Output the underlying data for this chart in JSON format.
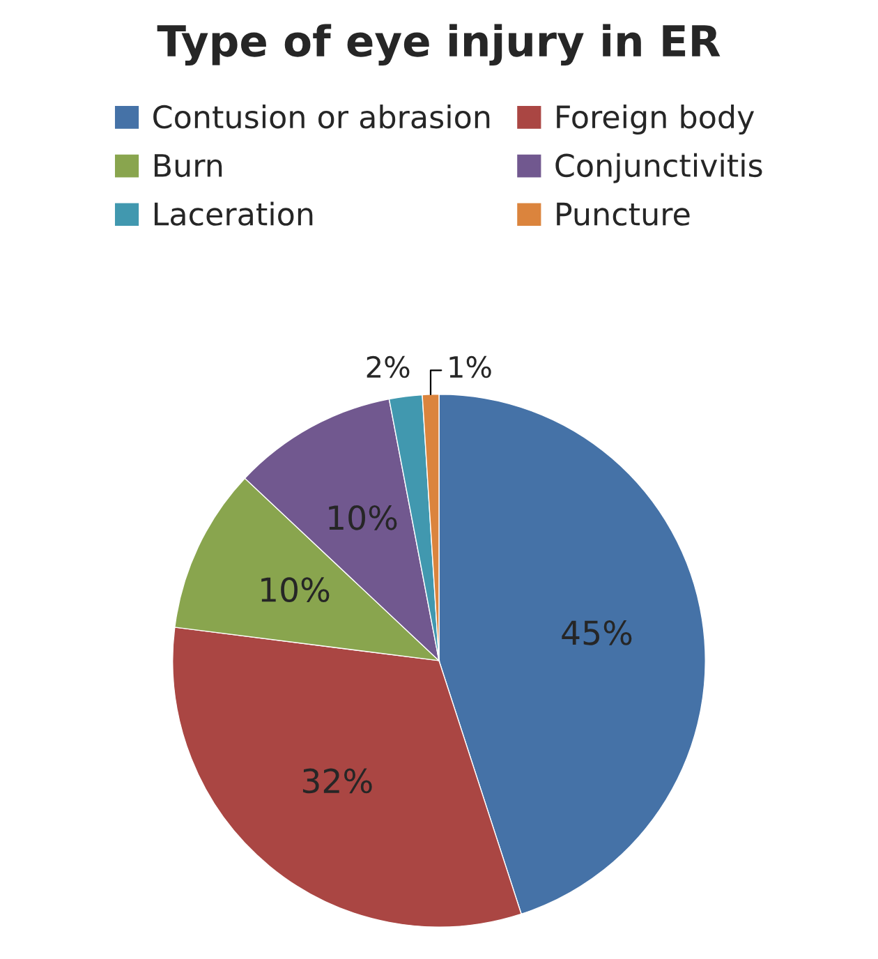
{
  "chart_data": {
    "type": "pie",
    "title": "Type of eye injury in ER",
    "categories": [
      "Contusion or abrasion",
      "Foreign body",
      "Burn",
      "Conjunctivitis",
      "Laceration",
      "Puncture"
    ],
    "values": [
      45,
      32,
      10,
      10,
      2,
      1
    ],
    "value_labels": [
      "45%",
      "32%",
      "10%",
      "10%",
      "2%",
      "1%"
    ],
    "colors": [
      "#4572a7",
      "#aa4643",
      "#89a54e",
      "#71588f",
      "#4198af",
      "#db843d"
    ],
    "legend": "top"
  }
}
